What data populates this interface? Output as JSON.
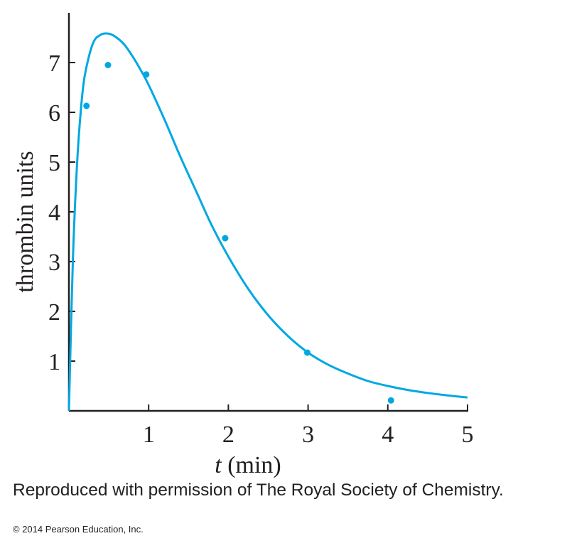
{
  "chart_data": {
    "type": "scatter",
    "xlabel_var": "t",
    "xlabel_unit": " (min)",
    "ylabel": "thrombin units",
    "xlim": [
      0,
      5
    ],
    "ylim": [
      0,
      8
    ],
    "x_ticks": [
      1,
      2,
      3,
      4,
      5
    ],
    "y_ticks": [
      1,
      2,
      3,
      4,
      5,
      6,
      7
    ],
    "grid": false,
    "series_color": "#00a8e1",
    "points": [
      {
        "x": 0.22,
        "y": 6.13
      },
      {
        "x": 0.49,
        "y": 6.95
      },
      {
        "x": 0.97,
        "y": 6.76
      },
      {
        "x": 1.96,
        "y": 3.47
      },
      {
        "x": 2.99,
        "y": 1.17
      },
      {
        "x": 4.04,
        "y": 0.21
      }
    ],
    "fit_curve": [
      [
        0,
        0
      ],
      [
        0.05,
        3.05
      ],
      [
        0.1,
        4.9
      ],
      [
        0.15,
        6.05
      ],
      [
        0.2,
        6.75
      ],
      [
        0.3,
        7.38
      ],
      [
        0.4,
        7.56
      ],
      [
        0.5,
        7.58
      ],
      [
        0.6,
        7.5
      ],
      [
        0.7,
        7.35
      ],
      [
        0.8,
        7.12
      ],
      [
        0.9,
        6.85
      ],
      [
        1.0,
        6.55
      ],
      [
        1.2,
        5.85
      ],
      [
        1.4,
        5.1
      ],
      [
        1.6,
        4.4
      ],
      [
        1.8,
        3.7
      ],
      [
        2.0,
        3.1
      ],
      [
        2.25,
        2.45
      ],
      [
        2.5,
        1.92
      ],
      [
        2.75,
        1.5
      ],
      [
        3.0,
        1.17
      ],
      [
        3.25,
        0.93
      ],
      [
        3.5,
        0.75
      ],
      [
        3.75,
        0.6
      ],
      [
        4.0,
        0.5
      ],
      [
        4.25,
        0.42
      ],
      [
        4.5,
        0.36
      ],
      [
        4.75,
        0.31
      ],
      [
        5.0,
        0.27
      ]
    ]
  },
  "caption": "Reproduced with permission of The Royal Society of Chemistry.",
  "copyright": "© 2014 Pearson Education, Inc."
}
